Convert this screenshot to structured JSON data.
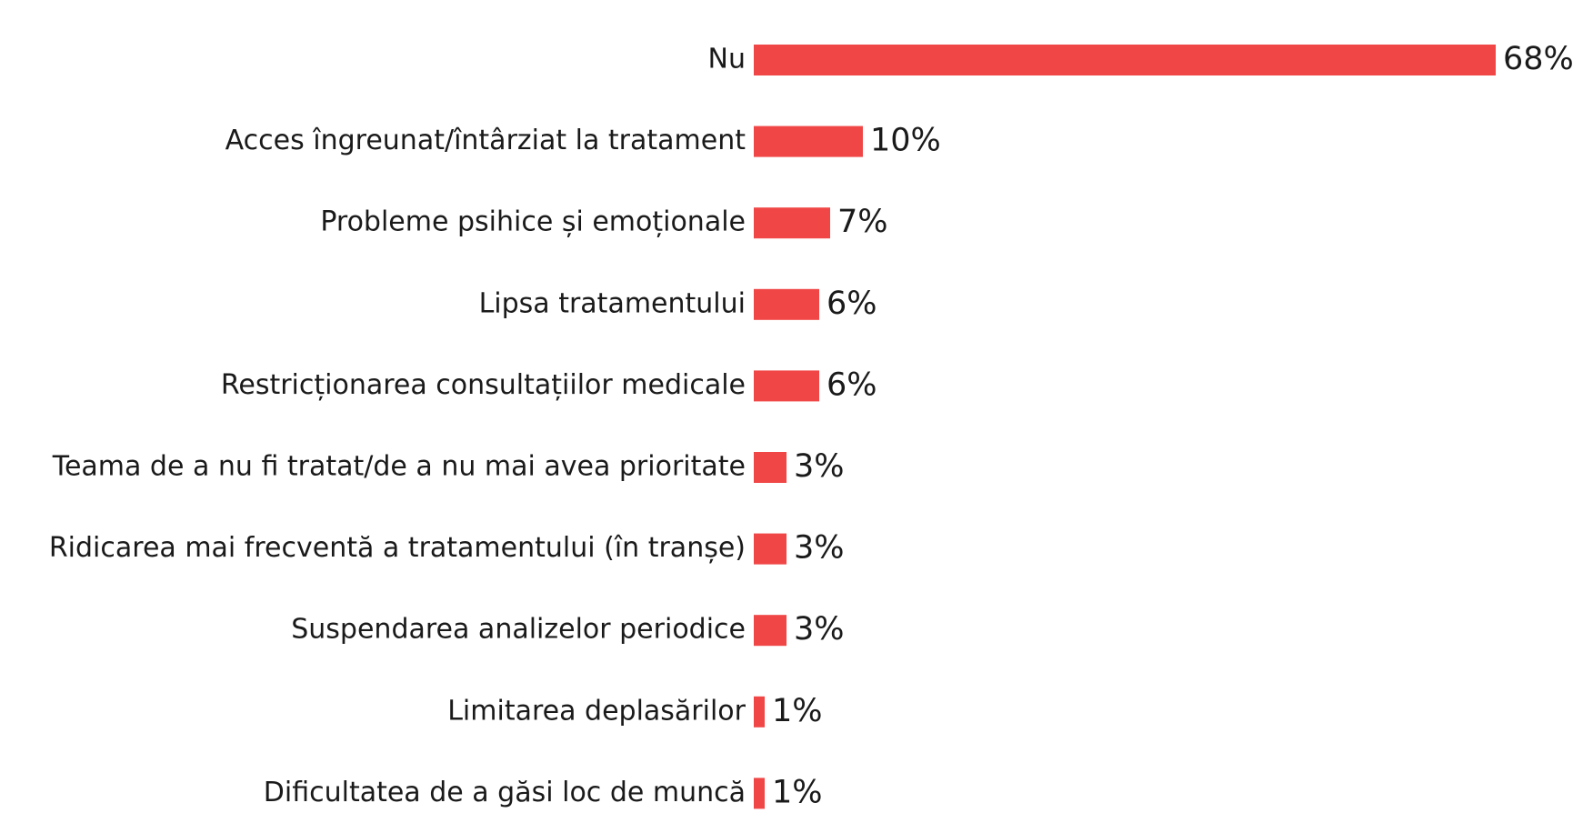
{
  "chart_data": {
    "type": "bar",
    "orientation": "horizontal",
    "categories": [
      "Nu",
      "Acces îngreunat/întârziat la tratament",
      "Probleme psihice și emoționale",
      "Lipsa tratamentului",
      "Restricționarea consultațiilor medicale",
      "Teama de a nu fi tratat/de a nu mai avea prioritate",
      "Ridicarea mai frecventă a tratamentului (în tranșe)",
      "Suspendarea analizelor periodice",
      "Limitarea deplasărilor",
      "Dificultatea de a găsi loc de muncă"
    ],
    "values": [
      68,
      10,
      7,
      6,
      6,
      3,
      3,
      3,
      1,
      1
    ],
    "value_labels": [
      "68%",
      "10%",
      "7%",
      "6%",
      "6%",
      "3%",
      "3%",
      "3%",
      "1%",
      "1%"
    ],
    "unit": "%",
    "bar_color": "#f04646",
    "title": "",
    "xlabel": "",
    "ylabel": "",
    "grid": false,
    "legend": "none"
  }
}
